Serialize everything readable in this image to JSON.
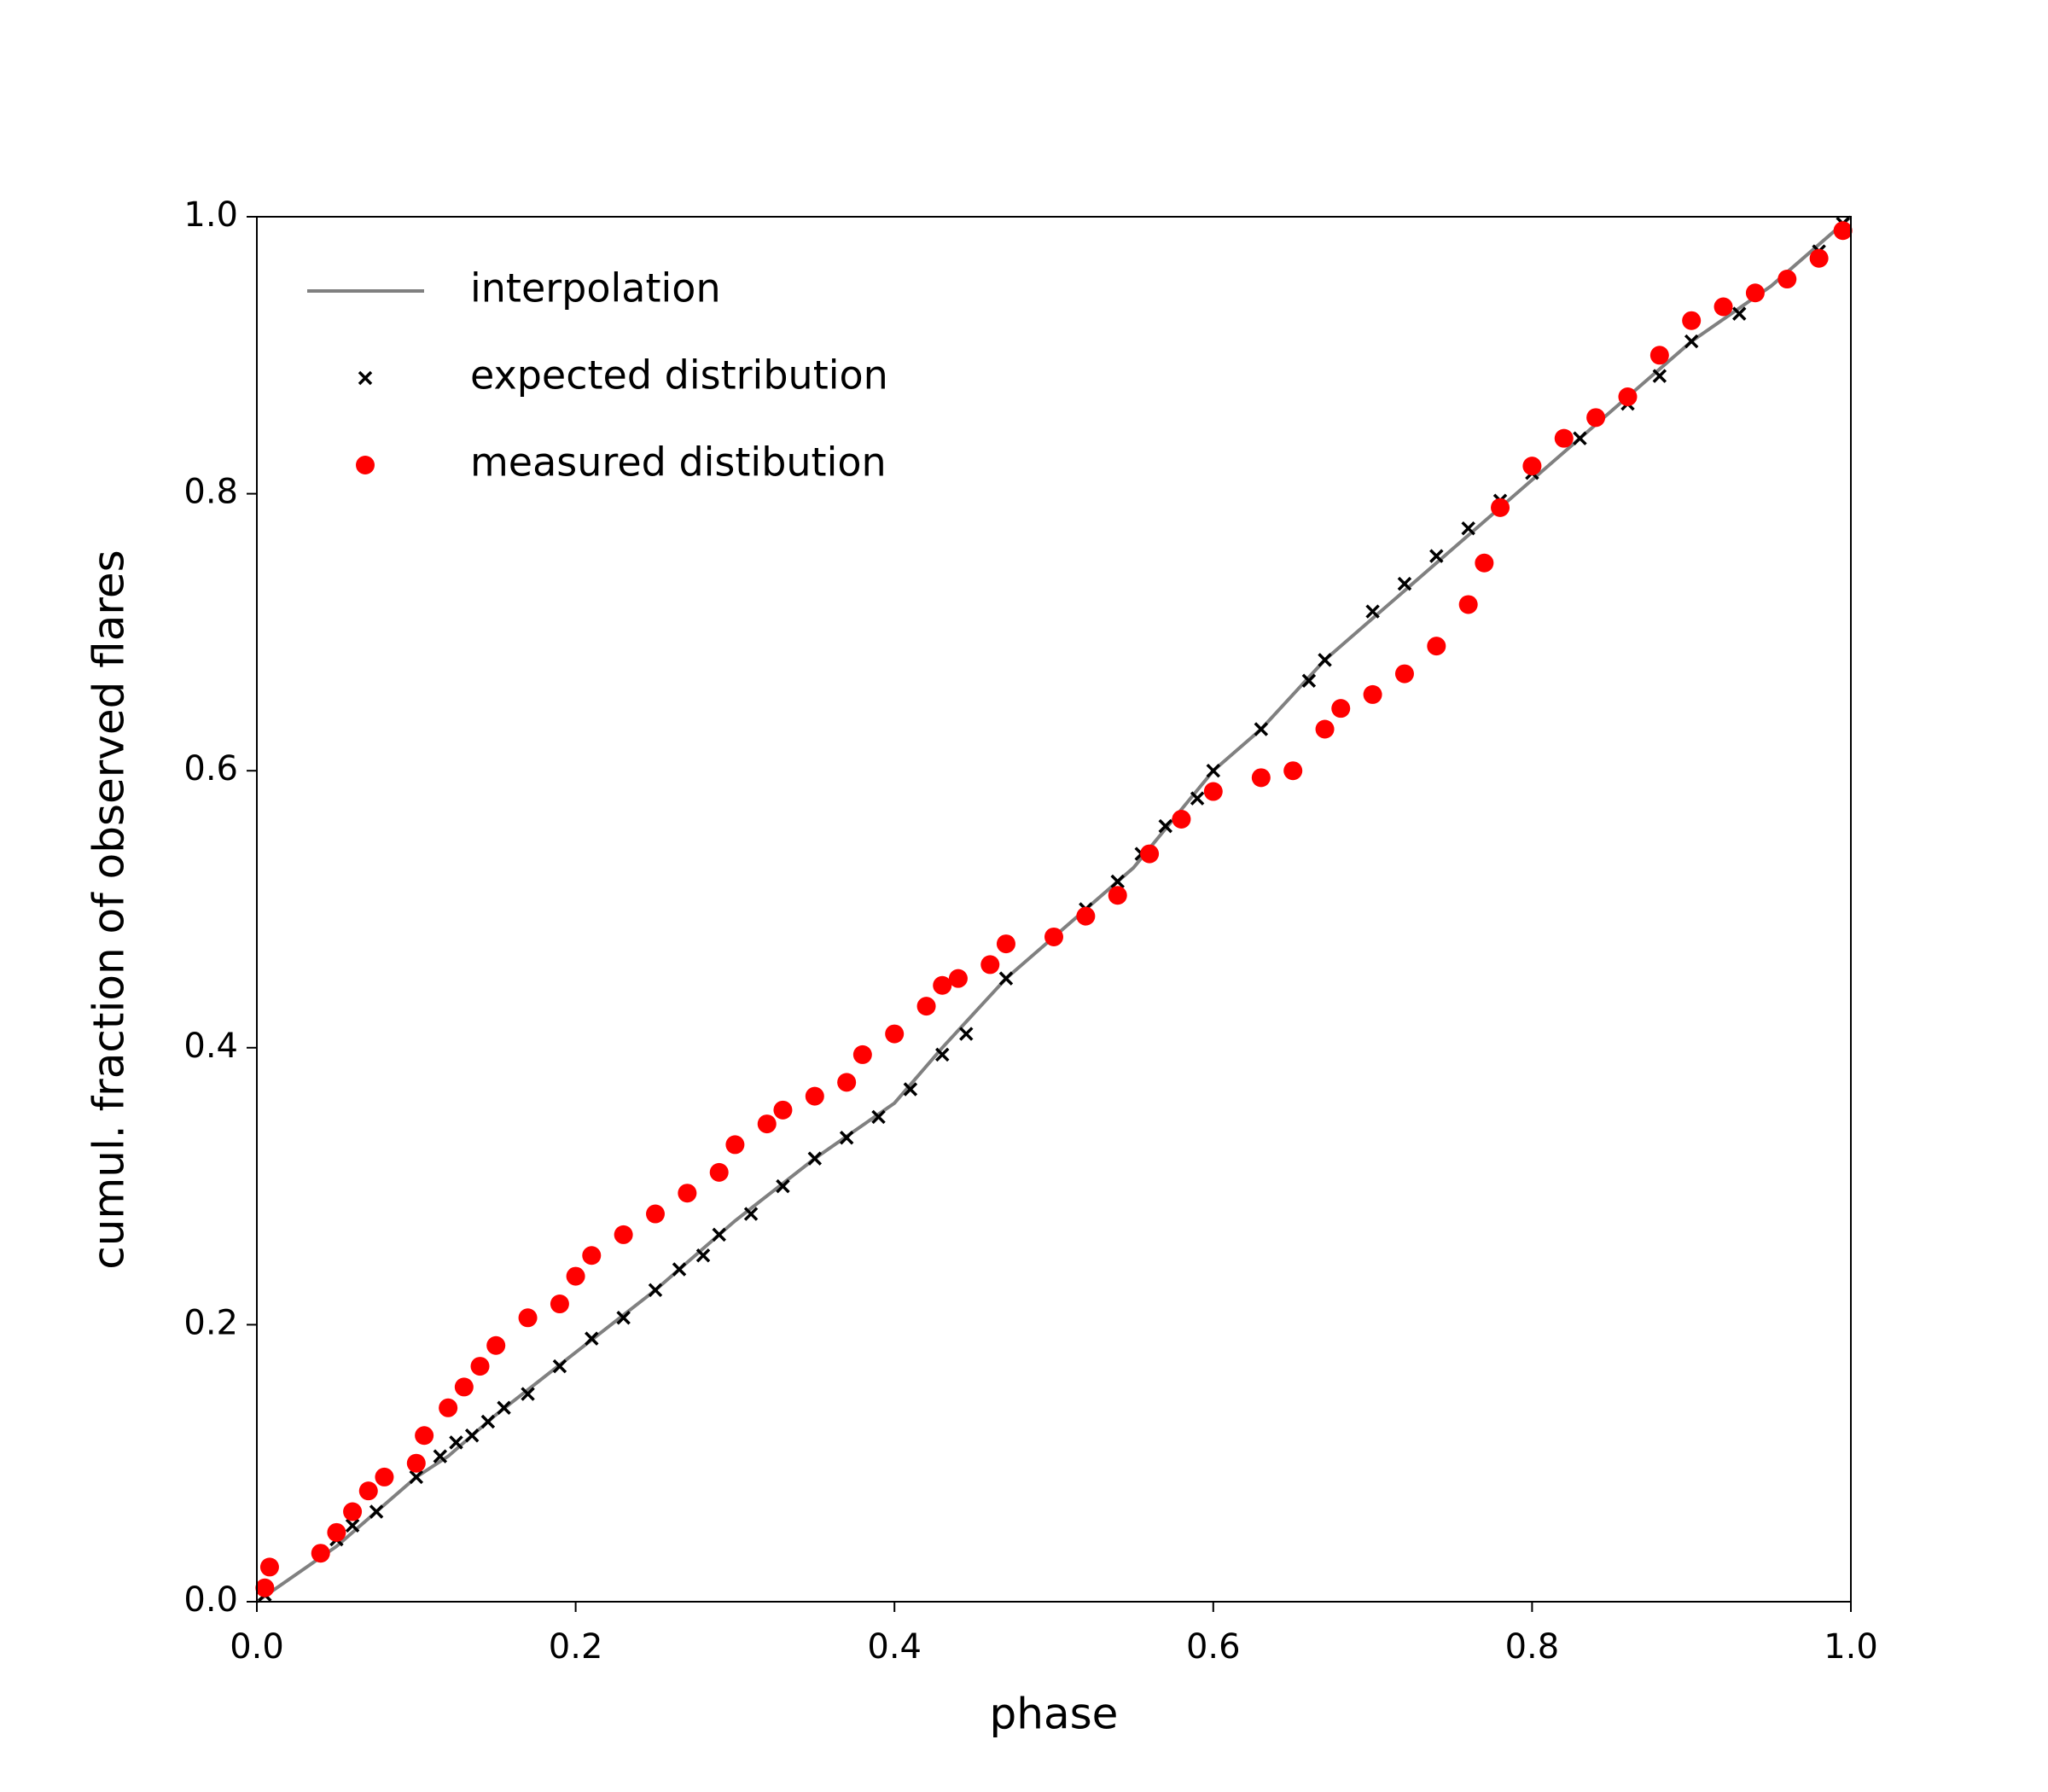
{
  "chart_data": {
    "type": "scatter",
    "xlabel": "phase",
    "ylabel": "cumul. fraction of observed flares",
    "xlim": [
      0,
      1
    ],
    "ylim": [
      0,
      1
    ],
    "xticks": [
      {
        "value": 0,
        "label": "0.0"
      },
      0.2,
      0.4,
      0.6,
      0.8,
      {
        "value": 1,
        "label": "1.0"
      }
    ],
    "yticks": [
      {
        "value": 0,
        "label": "0.0"
      },
      0.2,
      0.4,
      0.6,
      0.8,
      {
        "value": 1,
        "label": "1.0"
      }
    ],
    "legend": "upper left",
    "series": [
      {
        "name": "interpolation",
        "color": "#808080",
        "marker": "line",
        "x": [
          0,
          0.05,
          0.1,
          0.12,
          0.15,
          0.2,
          0.25,
          0.3,
          0.35,
          0.4,
          0.43,
          0.47,
          0.5,
          0.55,
          0.6,
          0.63,
          0.67,
          0.7,
          0.75,
          0.8,
          0.85,
          0.9,
          0.95,
          1.0
        ],
        "values": [
          0,
          0.04,
          0.09,
          0.105,
          0.135,
          0.18,
          0.225,
          0.275,
          0.32,
          0.36,
          0.4,
          0.45,
          0.48,
          0.53,
          0.6,
          0.63,
          0.68,
          0.71,
          0.76,
          0.81,
          0.86,
          0.91,
          0.95,
          1.0
        ]
      },
      {
        "name": "expected distribution",
        "color": "#000000",
        "marker": "x",
        "x": [
          0.005,
          0.05,
          0.06,
          0.075,
          0.1,
          0.115,
          0.125,
          0.135,
          0.145,
          0.155,
          0.17,
          0.19,
          0.21,
          0.23,
          0.25,
          0.265,
          0.28,
          0.29,
          0.31,
          0.33,
          0.35,
          0.37,
          0.39,
          0.41,
          0.43,
          0.445,
          0.47,
          0.5,
          0.52,
          0.54,
          0.555,
          0.57,
          0.59,
          0.6,
          0.63,
          0.66,
          0.67,
          0.7,
          0.72,
          0.74,
          0.76,
          0.78,
          0.8,
          0.83,
          0.86,
          0.88,
          0.9,
          0.93,
          0.96,
          0.98,
          0.995
        ],
        "values": [
          0.005,
          0.045,
          0.055,
          0.065,
          0.09,
          0.105,
          0.115,
          0.12,
          0.13,
          0.14,
          0.15,
          0.17,
          0.19,
          0.205,
          0.225,
          0.24,
          0.25,
          0.265,
          0.28,
          0.3,
          0.32,
          0.335,
          0.35,
          0.37,
          0.395,
          0.41,
          0.45,
          0.48,
          0.5,
          0.52,
          0.54,
          0.56,
          0.58,
          0.6,
          0.63,
          0.665,
          0.68,
          0.715,
          0.735,
          0.755,
          0.775,
          0.795,
          0.815,
          0.84,
          0.865,
          0.885,
          0.91,
          0.93,
          0.955,
          0.975,
          0.995
        ]
      },
      {
        "name": "measured distibution",
        "color": "#ff0000",
        "marker": "o",
        "x": [
          0.005,
          0.008,
          0.04,
          0.05,
          0.06,
          0.07,
          0.08,
          0.1,
          0.105,
          0.12,
          0.13,
          0.14,
          0.15,
          0.17,
          0.19,
          0.2,
          0.21,
          0.23,
          0.25,
          0.27,
          0.29,
          0.3,
          0.32,
          0.33,
          0.35,
          0.37,
          0.38,
          0.4,
          0.42,
          0.43,
          0.44,
          0.46,
          0.47,
          0.5,
          0.52,
          0.54,
          0.56,
          0.58,
          0.6,
          0.63,
          0.65,
          0.67,
          0.68,
          0.7,
          0.72,
          0.74,
          0.76,
          0.77,
          0.78,
          0.8,
          0.82,
          0.84,
          0.86,
          0.88,
          0.9,
          0.92,
          0.94,
          0.96,
          0.98,
          0.995
        ],
        "values": [
          0.01,
          0.025,
          0.035,
          0.05,
          0.065,
          0.08,
          0.09,
          0.1,
          0.12,
          0.14,
          0.155,
          0.17,
          0.185,
          0.205,
          0.215,
          0.235,
          0.25,
          0.265,
          0.28,
          0.295,
          0.31,
          0.33,
          0.345,
          0.355,
          0.365,
          0.375,
          0.395,
          0.41,
          0.43,
          0.445,
          0.45,
          0.46,
          0.475,
          0.48,
          0.495,
          0.51,
          0.54,
          0.565,
          0.585,
          0.595,
          0.6,
          0.63,
          0.645,
          0.655,
          0.67,
          0.69,
          0.72,
          0.75,
          0.79,
          0.82,
          0.84,
          0.855,
          0.87,
          0.9,
          0.925,
          0.935,
          0.945,
          0.955,
          0.97,
          0.99
        ]
      }
    ]
  }
}
